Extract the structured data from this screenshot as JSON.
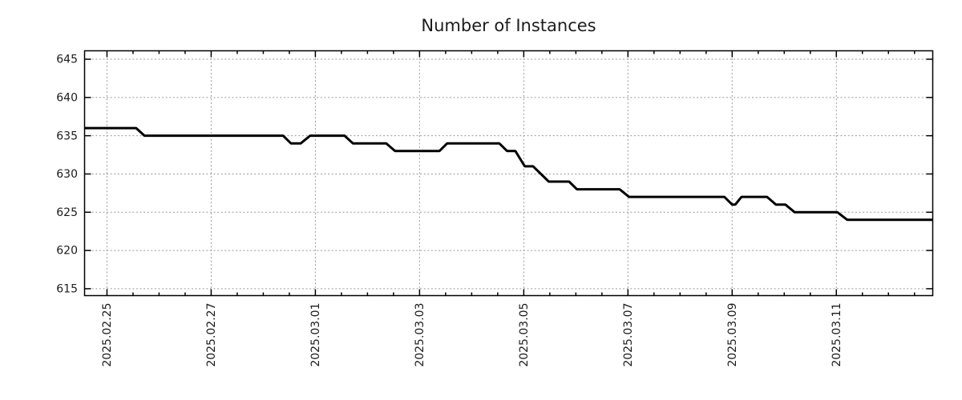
{
  "chart_data": {
    "type": "line",
    "title": "Number of Instances",
    "xlabel": "",
    "ylabel": "",
    "legend": "none",
    "grid": true,
    "colors": {
      "line": "#000000",
      "grid": "#9a9a9a",
      "axis": "#000000",
      "text": "#1c1c1c",
      "background": "#ffffff"
    },
    "x_axis": {
      "epoch_label": "2025.02.25",
      "unit": "days since 2025.02.25",
      "range_days": [
        -0.43,
        15.85
      ],
      "major_ticks": [
        {
          "d": 0,
          "label": "2025.02.25"
        },
        {
          "d": 2,
          "label": "2025.02.27"
        },
        {
          "d": 4,
          "label": "2025.03.01"
        },
        {
          "d": 6,
          "label": "2025.03.03"
        },
        {
          "d": 8,
          "label": "2025.03.05"
        },
        {
          "d": 10,
          "label": "2025.03.07"
        },
        {
          "d": 12,
          "label": "2025.03.09"
        },
        {
          "d": 14,
          "label": "2025.03.11"
        }
      ],
      "minor_tick_interval_days": 0.5,
      "label_rotation_deg": -90
    },
    "y_axis": {
      "ticks": [
        615,
        620,
        625,
        630,
        635,
        640,
        645
      ],
      "range": [
        614.1,
        646.1
      ]
    },
    "series": [
      {
        "name": "instances",
        "color": "#000000",
        "points": [
          [
            -0.43,
            636
          ],
          [
            0.56,
            636
          ],
          [
            0.72,
            635
          ],
          [
            3.38,
            635
          ],
          [
            3.53,
            634
          ],
          [
            3.72,
            634
          ],
          [
            3.9,
            635
          ],
          [
            4.56,
            635
          ],
          [
            4.72,
            634
          ],
          [
            5.36,
            634
          ],
          [
            5.53,
            633
          ],
          [
            6.38,
            633
          ],
          [
            6.53,
            634
          ],
          [
            7.53,
            634
          ],
          [
            7.68,
            633
          ],
          [
            7.84,
            633
          ],
          [
            8.02,
            631
          ],
          [
            8.18,
            631
          ],
          [
            8.48,
            629
          ],
          [
            8.87,
            629
          ],
          [
            9.02,
            628
          ],
          [
            9.84,
            628
          ],
          [
            10.02,
            627
          ],
          [
            11.85,
            627
          ],
          [
            12.0,
            626
          ],
          [
            12.06,
            626
          ],
          [
            12.18,
            627
          ],
          [
            12.67,
            627
          ],
          [
            12.84,
            626
          ],
          [
            13.02,
            626
          ],
          [
            13.2,
            625
          ],
          [
            14.02,
            625
          ],
          [
            14.21,
            624
          ],
          [
            15.85,
            624
          ]
        ]
      }
    ]
  }
}
